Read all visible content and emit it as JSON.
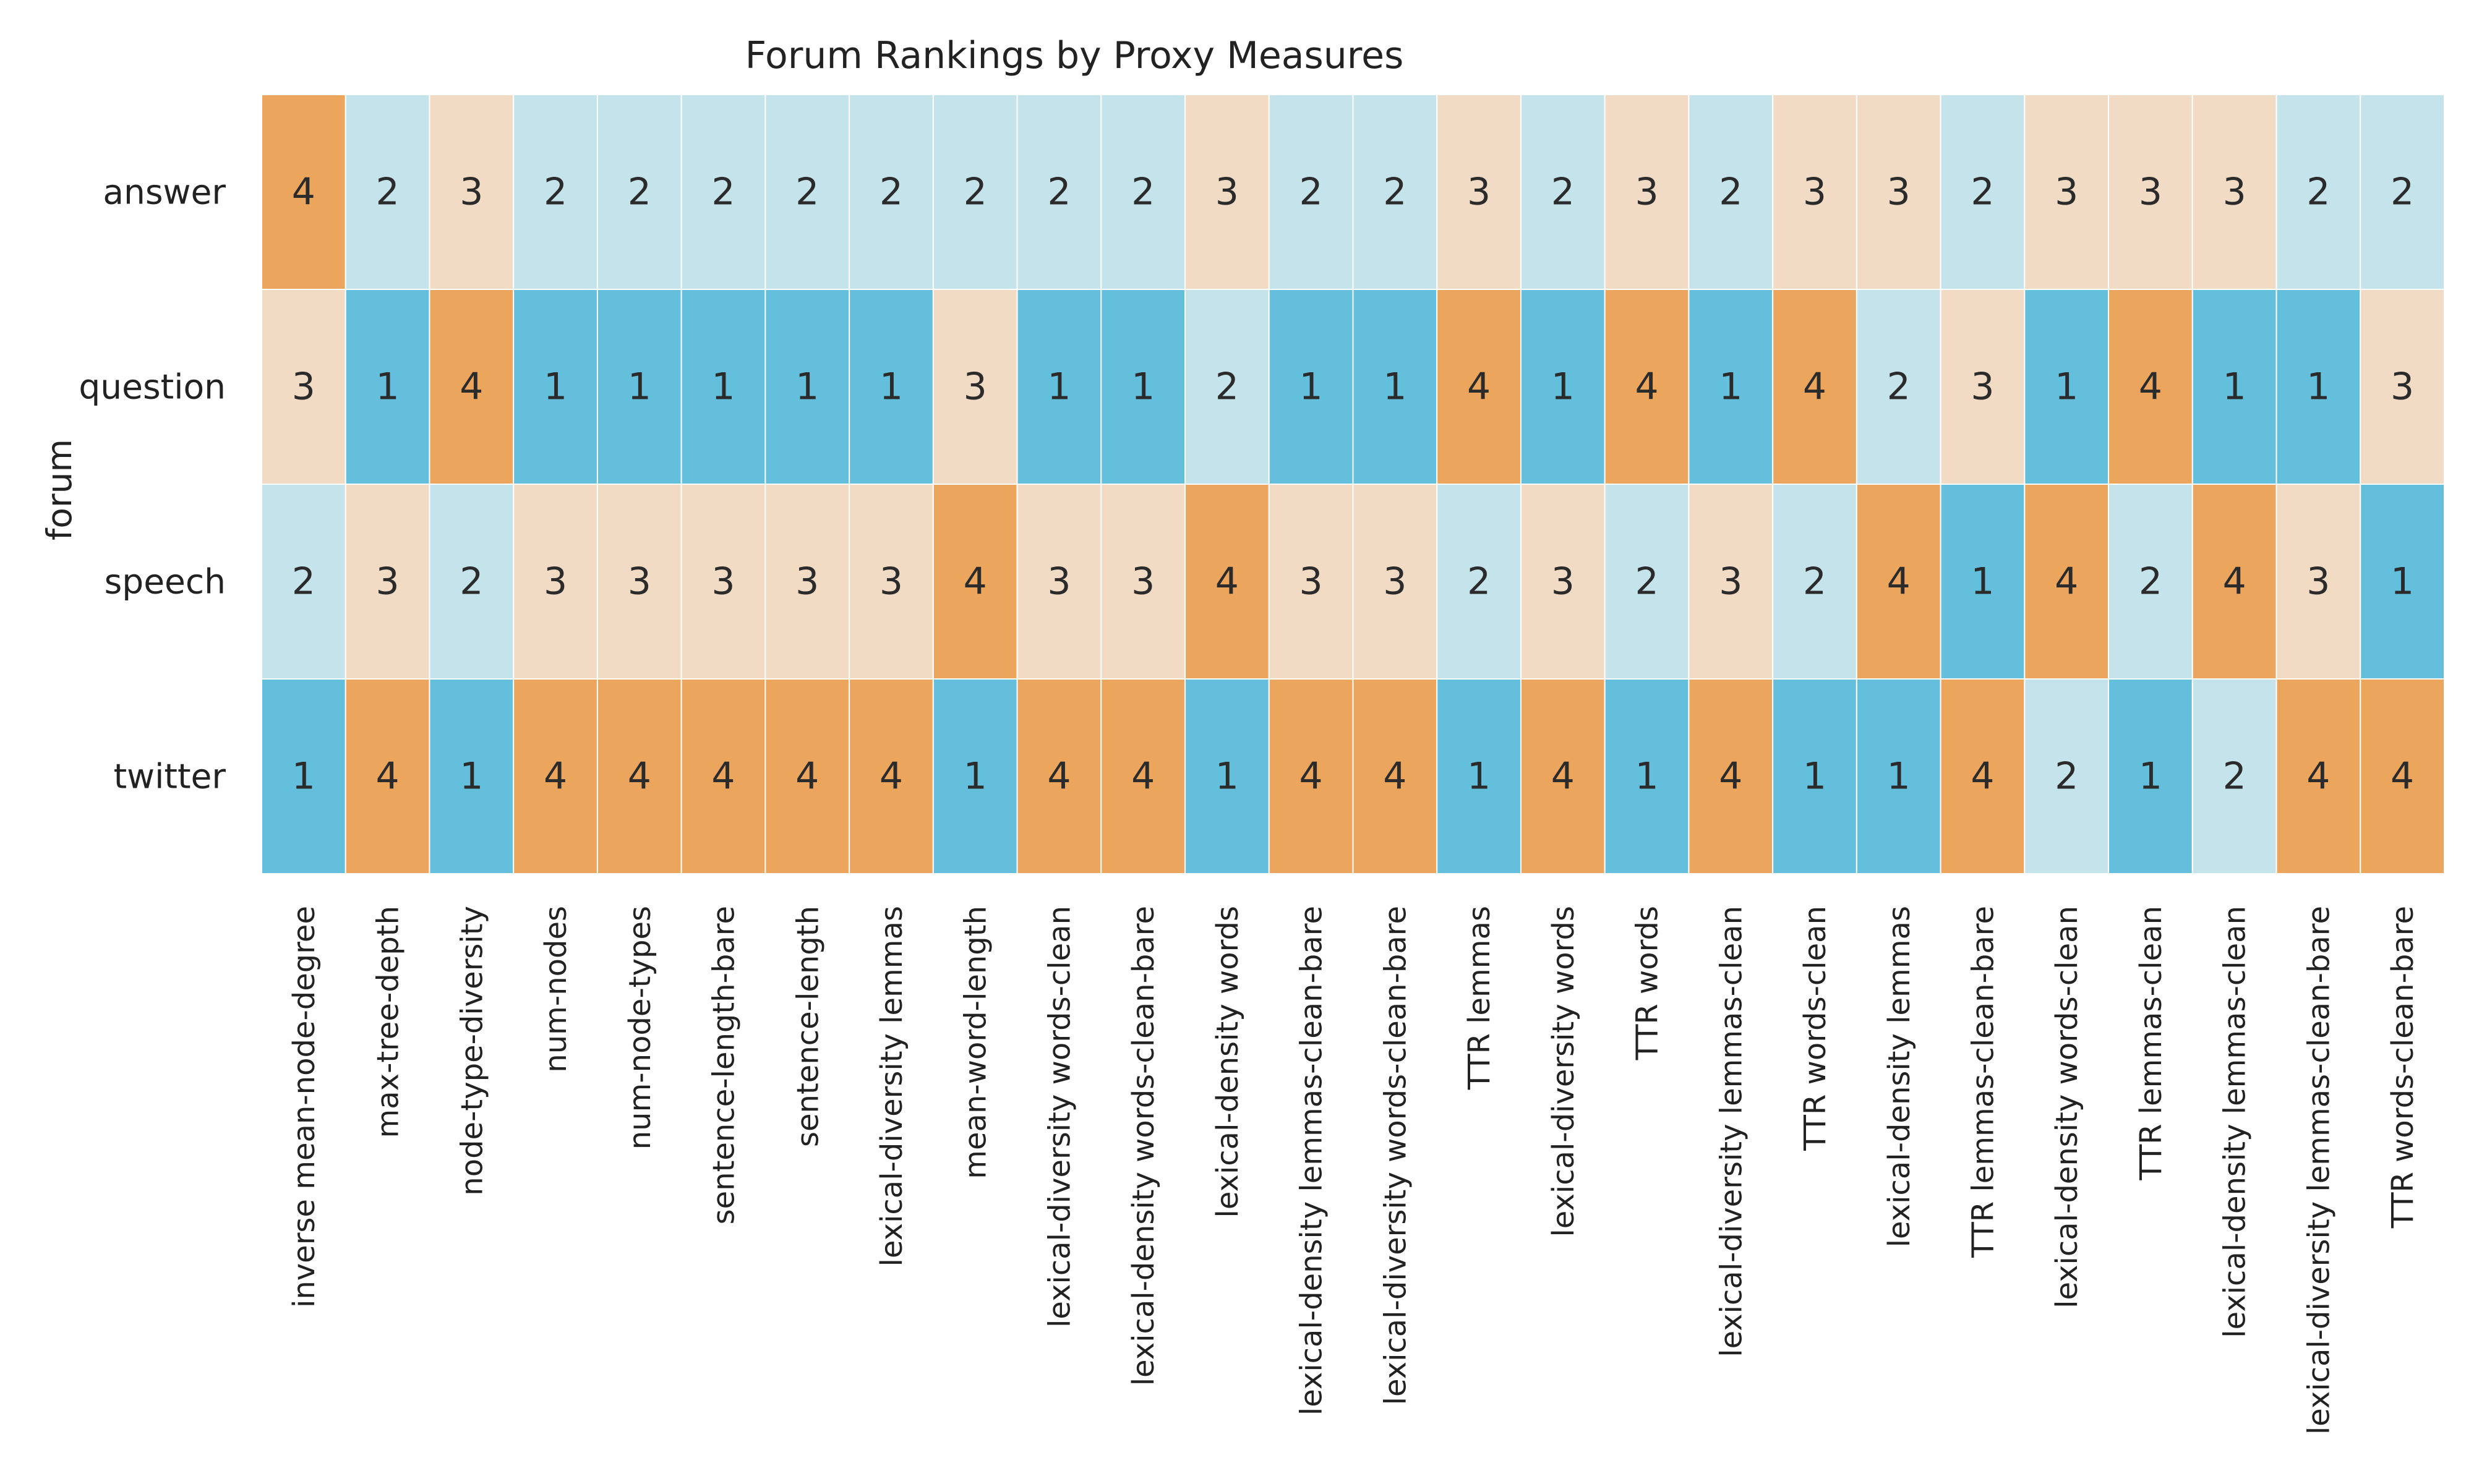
{
  "chart_data": {
    "type": "heatmap",
    "title": "Forum Rankings by Proxy Measures",
    "ylabel": "forum",
    "xlabel": "",
    "rows": [
      "answer",
      "question",
      "speech",
      "twitter"
    ],
    "columns": [
      "inverse mean-node-degree",
      "max-tree-depth",
      "node-type-diversity",
      "num-nodes",
      "num-node-types",
      "sentence-length-bare",
      "sentence-length",
      "lexical-diversity lemmas",
      "mean-word-length",
      "lexical-diversity words-clean",
      "lexical-density words-clean-bare",
      "lexical-density words",
      "lexical-density lemmas-clean-bare",
      "lexical-diversity words-clean-bare",
      "TTR lemmas",
      "lexical-diversity words",
      "TTR words",
      "lexical-diversity lemmas-clean",
      "TTR words-clean",
      "lexical-density lemmas",
      "TTR lemmas-clean-bare",
      "lexical-density words-clean",
      "TTR lemmas-clean",
      "lexical-density lemmas-clean",
      "lexical-diversity lemmas-clean-bare",
      "TTR words-clean-bare"
    ],
    "values": [
      [
        4,
        2,
        3,
        2,
        2,
        2,
        2,
        2,
        2,
        2,
        2,
        3,
        2,
        2,
        3,
        2,
        3,
        2,
        3,
        3,
        2,
        3,
        3,
        3,
        2,
        2
      ],
      [
        3,
        1,
        4,
        1,
        1,
        1,
        1,
        1,
        3,
        1,
        1,
        2,
        1,
        1,
        4,
        1,
        4,
        1,
        4,
        2,
        3,
        1,
        4,
        1,
        1,
        3
      ],
      [
        2,
        3,
        2,
        3,
        3,
        3,
        3,
        3,
        4,
        3,
        3,
        4,
        3,
        3,
        2,
        3,
        2,
        3,
        2,
        4,
        1,
        4,
        2,
        4,
        3,
        1
      ],
      [
        1,
        4,
        1,
        4,
        4,
        4,
        4,
        4,
        1,
        4,
        4,
        1,
        4,
        4,
        1,
        4,
        1,
        4,
        1,
        1,
        4,
        2,
        1,
        2,
        4,
        4
      ]
    ],
    "colors": {
      "1": "#63bfdb",
      "2": "#c5e3eb",
      "3": "#f2dbc4",
      "4": "#eba55d"
    },
    "grid": false,
    "legend": "none"
  }
}
